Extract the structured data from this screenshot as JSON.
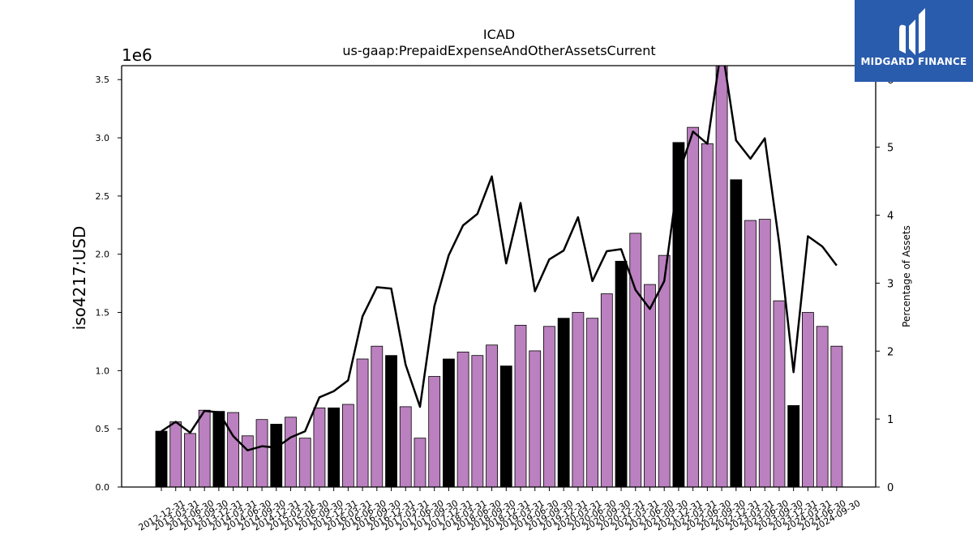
{
  "chart_data": {
    "type": "bar",
    "title": "ICAD",
    "subtitle": "us-gaap:PrepaidExpenseAndOtherAssetsCurrent",
    "ylabel": "iso4217:USD",
    "y_offset_label": "1e6",
    "ylabel_right": "Percentage of Assets",
    "ylim": [
      0,
      3.62
    ],
    "ylim_right": [
      0,
      6.2
    ],
    "yticks": [
      "0.0",
      "0.5",
      "1.0",
      "1.5",
      "2.0",
      "2.5",
      "3.0",
      "3.5"
    ],
    "yticks_right": [
      "0",
      "1",
      "2",
      "3",
      "4",
      "5",
      "6"
    ],
    "categories": [
      "2012-12-31",
      "2013-03-31",
      "2013-06-30",
      "2013-09-30",
      "2013-12-31",
      "2014-03-31",
      "2014-06-30",
      "2014-09-30",
      "2014-12-31",
      "2015-03-31",
      "2015-06-30",
      "2015-09-30",
      "2015-12-31",
      "2016-03-31",
      "2016-06-30",
      "2016-09-30",
      "2016-12-31",
      "2017-03-31",
      "2017-06-30",
      "2017-09-30",
      "2017-12-31",
      "2018-03-31",
      "2018-06-30",
      "2018-09-30",
      "2018-12-31",
      "2019-03-31",
      "2019-06-30",
      "2019-09-30",
      "2019-12-31",
      "2020-03-31",
      "2020-06-30",
      "2020-09-30",
      "2020-12-31",
      "2021-03-31",
      "2021-06-30",
      "2021-09-30",
      "2021-12-31",
      "2022-03-31",
      "2022-06-30",
      "2022-09-30",
      "2022-12-31",
      "2023-03-31",
      "2023-06-30",
      "2023-09-30",
      "2023-12-31",
      "2024-03-31",
      "2024-06-30",
      "2024-09-30"
    ],
    "series": [
      {
        "name": "",
        "kind": "bar",
        "axis": "left",
        "values": [
          0.48,
          0.56,
          0.46,
          0.66,
          0.65,
          0.64,
          0.44,
          0.58,
          0.54,
          0.6,
          0.42,
          0.68,
          0.68,
          0.71,
          1.1,
          1.21,
          1.13,
          0.69,
          0.42,
          0.95,
          1.1,
          1.16,
          1.13,
          1.22,
          1.04,
          1.39,
          1.17,
          1.38,
          1.45,
          1.5,
          1.45,
          1.66,
          1.94,
          2.18,
          1.74,
          1.99,
          2.96,
          3.09,
          2.95,
          3.66,
          2.64,
          2.29,
          2.3,
          1.6,
          0.7,
          1.5,
          1.38,
          1.21
        ],
        "fiscal_year_end": [
          true,
          false,
          false,
          false,
          true,
          false,
          false,
          false,
          true,
          false,
          false,
          false,
          true,
          false,
          false,
          false,
          true,
          false,
          false,
          false,
          true,
          false,
          false,
          false,
          true,
          false,
          false,
          false,
          true,
          false,
          false,
          false,
          true,
          false,
          false,
          false,
          true,
          false,
          false,
          false,
          true,
          false,
          false,
          false,
          true,
          false,
          false,
          false
        ]
      },
      {
        "name": "",
        "kind": "line",
        "axis": "right",
        "values": [
          0.82,
          0.96,
          0.8,
          1.12,
          1.1,
          0.75,
          0.54,
          0.6,
          0.58,
          0.73,
          0.82,
          1.32,
          1.41,
          1.57,
          2.51,
          2.94,
          2.92,
          1.8,
          1.18,
          2.66,
          3.41,
          3.85,
          4.02,
          4.57,
          3.29,
          4.18,
          2.88,
          3.35,
          3.48,
          3.97,
          3.03,
          3.47,
          3.5,
          2.9,
          2.62,
          3.03,
          4.6,
          5.23,
          5.05,
          6.5,
          5.1,
          4.83,
          5.13,
          3.59,
          1.69,
          3.69,
          3.54,
          3.26
        ]
      }
    ],
    "colors": {
      "bar_regular": "#bb80bf",
      "bar_fiscal": "#000000",
      "line": "#000000",
      "edge": "#000000"
    },
    "grid": false,
    "legend": "none"
  },
  "logo": {
    "text": "MIDGARD FINANCE",
    "background": "#2a5cad",
    "icon": "midgard-logo-icon"
  }
}
